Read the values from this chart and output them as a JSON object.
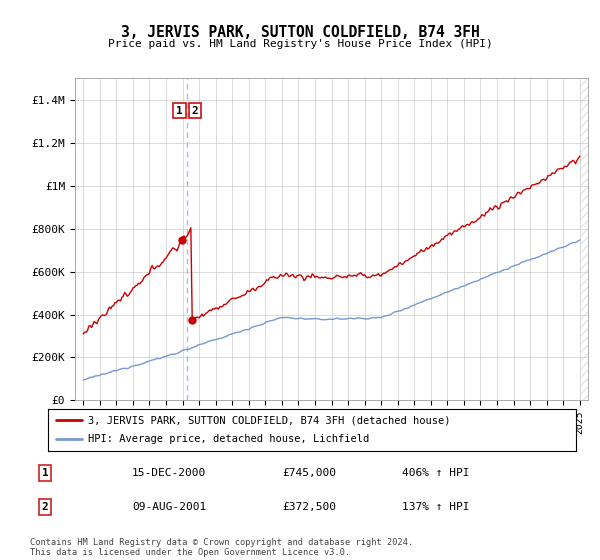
{
  "title": "3, JERVIS PARK, SUTTON COLDFIELD, B74 3FH",
  "subtitle": "Price paid vs. HM Land Registry's House Price Index (HPI)",
  "ylabel_ticks": [
    "£0",
    "£200K",
    "£400K",
    "£600K",
    "£800K",
    "£1M",
    "£1.2M",
    "£1.4M"
  ],
  "ytick_values": [
    0,
    200000,
    400000,
    600000,
    800000,
    1000000,
    1200000,
    1400000
  ],
  "ylim": [
    0,
    1500000
  ],
  "xlim_start": 1994.5,
  "xlim_end": 2025.5,
  "legend_line1": "3, JERVIS PARK, SUTTON COLDFIELD, B74 3FH (detached house)",
  "legend_line2": "HPI: Average price, detached house, Lichfield",
  "table_rows": [
    {
      "num": "1",
      "date": "15-DEC-2000",
      "price": "£745,000",
      "hpi": "406% ↑ HPI"
    },
    {
      "num": "2",
      "date": "09-AUG-2001",
      "price": "£372,500",
      "hpi": "137% ↑ HPI"
    }
  ],
  "footer": "Contains HM Land Registry data © Crown copyright and database right 2024.\nThis data is licensed under the Open Government Licence v3.0.",
  "sale1_x": 2000.958,
  "sale1_y": 745000,
  "sale2_x": 2001.583,
  "sale2_y": 372500,
  "red_color": "#cc0000",
  "blue_color": "#7799cc",
  "dashed_line_color": "#aabbdd",
  "background_color": "#ffffff",
  "grid_color": "#cccccc",
  "hatch_color": "#cccccc"
}
